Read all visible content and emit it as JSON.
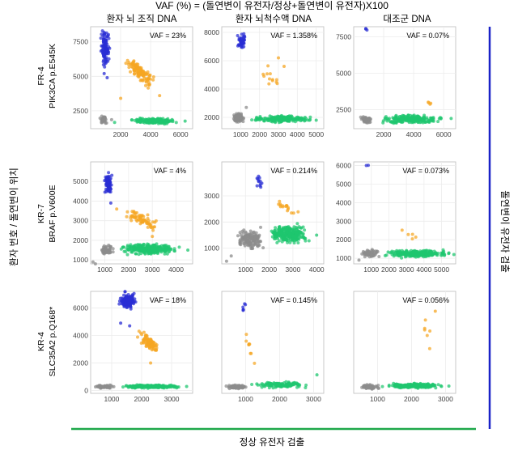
{
  "title": "VAF (%) = (돌연변이 유전자/정상+돌연변이 유전자)X100",
  "column_headers": [
    "환자 뇌 조직 DNA",
    "환자 뇌척수액 DNA",
    "대조군 DNA"
  ],
  "y_axis_label": "환자 번호 / 돌연변이 위치",
  "x_axis_label": "정상 유전자 검출",
  "right_axis_label": "돌연변이 유전자 검출",
  "colors": {
    "mutant": "#2a2ed4",
    "double": "#f5a623",
    "wildtype": "#1ec66f",
    "negative": "#8c8c8c",
    "grid": "#ececec",
    "blue_line": "#1a22c8",
    "green_line": "#1ea84a"
  },
  "rows": [
    {
      "patient": "FR-4",
      "mutation": "PIK3CA p.E545K"
    },
    {
      "patient": "KR-7",
      "mutation": "BRAF p.V600E"
    },
    {
      "patient": "KR-4",
      "mutation": "SLC35A2 p.Q168*"
    }
  ],
  "chart_data": [
    {
      "type": "scatter",
      "row": "FR-4",
      "column": "환자 뇌 조직 DNA",
      "annotation": "VAF = 23%",
      "xlim": [
        0,
        6800
      ],
      "ylim": [
        1200,
        8600
      ],
      "xticks": [
        2000,
        4000,
        6000
      ],
      "yticks": [
        2500,
        5000,
        7500
      ],
      "clusters": [
        {
          "name": "negative",
          "x": [
            500,
            1200
          ],
          "y": [
            1500,
            2200
          ],
          "n": 45,
          "tails": [
            [
              1400,
              1850
            ],
            [
              1000,
              1600
            ]
          ]
        },
        {
          "name": "mutant",
          "x": [
            600,
            1300
          ],
          "y": [
            5600,
            8600
          ],
          "n": 110,
          "tails": [
            [
              900,
              5200
            ],
            [
              1100,
              4900
            ]
          ]
        },
        {
          "name": "double",
          "x": [
            2200,
            4400
          ],
          "y": [
            3800,
            6800
          ],
          "n": 130,
          "tails": [
            [
              2000,
              3400
            ],
            [
              4600,
              3600
            ]
          ]
        },
        {
          "name": "wildtype",
          "x": [
            2400,
            6000
          ],
          "y": [
            1500,
            2000
          ],
          "n": 190,
          "tails": [
            [
              6300,
              1750
            ],
            [
              1600,
              1650
            ]
          ]
        }
      ]
    },
    {
      "type": "scatter",
      "row": "FR-4",
      "column": "환자 뇌척수액 DNA",
      "annotation": "VAF = 1.358%",
      "xlim": [
        0,
        5400
      ],
      "ylim": [
        1200,
        8400
      ],
      "xticks": [
        1000,
        2000,
        3000,
        4000,
        5000
      ],
      "yticks": [
        2000,
        4000,
        6000,
        8000
      ],
      "clusters": [
        {
          "name": "negative",
          "x": [
            500,
            1300
          ],
          "y": [
            1500,
            2400
          ],
          "n": 80,
          "tails": [
            [
              1300,
              2700
            ]
          ]
        },
        {
          "name": "mutant",
          "x": [
            800,
            1300
          ],
          "y": [
            6600,
            8100
          ],
          "n": 45,
          "tails": []
        },
        {
          "name": "double",
          "x": [
            1600,
            3600
          ],
          "y": [
            2600,
            6500
          ],
          "n": 12,
          "tails": [
            [
              3000,
              6200
            ],
            [
              3300,
              5600
            ]
          ]
        },
        {
          "name": "wildtype",
          "x": [
            1300,
            5000
          ],
          "y": [
            1600,
            2200
          ],
          "n": 210,
          "tails": [
            [
              5000,
              1800
            ]
          ]
        }
      ]
    },
    {
      "type": "scatter",
      "row": "FR-4",
      "column": "대조군 DNA",
      "annotation": "VAF = 0.07%",
      "xlim": [
        0,
        6800
      ],
      "ylim": [
        1200,
        8200
      ],
      "xticks": [
        2000,
        4000,
        6000
      ],
      "yticks": [
        2500,
        5000,
        7500
      ],
      "clusters": [
        {
          "name": "negative",
          "x": [
            400,
            1300
          ],
          "y": [
            1500,
            2100
          ],
          "n": 55,
          "tails": [
            [
              900,
              1900
            ]
          ]
        },
        {
          "name": "mutant",
          "x": [
            700,
            1000
          ],
          "y": [
            7600,
            8200
          ],
          "n": 3,
          "tails": []
        },
        {
          "name": "double",
          "x": [
            4900,
            5300
          ],
          "y": [
            2400,
            3500
          ],
          "n": 4,
          "tails": []
        },
        {
          "name": "wildtype",
          "x": [
            1400,
            6300
          ],
          "y": [
            1500,
            2200
          ],
          "n": 230,
          "tails": [
            [
              6500,
              1900
            ]
          ]
        }
      ]
    },
    {
      "type": "scatter",
      "row": "KR-7",
      "column": "환자 뇌 조직 DNA",
      "annotation": "VAF = 4%",
      "xlim": [
        400,
        4700
      ],
      "ylim": [
        800,
        6000
      ],
      "xticks": [
        1000,
        2000,
        3000,
        4000
      ],
      "yticks": [
        1000,
        2000,
        3000,
        4000,
        5000
      ],
      "clusters": [
        {
          "name": "negative",
          "x": [
            700,
            1400
          ],
          "y": [
            1200,
            1900
          ],
          "n": 55,
          "tails": [
            [
              600,
              800
            ],
            [
              500,
              900
            ]
          ]
        },
        {
          "name": "mutant",
          "x": [
            950,
            1350
          ],
          "y": [
            4100,
            5600
          ],
          "n": 85,
          "tails": [
            [
              1250,
              3900
            ]
          ]
        },
        {
          "name": "double",
          "x": [
            1700,
            3300
          ],
          "y": [
            2300,
            3900
          ],
          "n": 70,
          "tails": [
            [
              1500,
              3600
            ],
            [
              3000,
              2200
            ]
          ]
        },
        {
          "name": "wildtype",
          "x": [
            1400,
            4400
          ],
          "y": [
            1200,
            1900
          ],
          "n": 260,
          "tails": [
            [
              4500,
              1500
            ]
          ]
        }
      ]
    },
    {
      "type": "scatter",
      "row": "KR-7",
      "column": "환자 뇌척수액 DNA",
      "annotation": "VAF = 0.214%",
      "xlim": [
        0,
        4300
      ],
      "ylim": [
        400,
        4300
      ],
      "xticks": [
        1000,
        2000,
        3000,
        4000
      ],
      "yticks": [
        1000,
        2000,
        3000
      ],
      "clusters": [
        {
          "name": "negative",
          "x": [
            500,
            1900
          ],
          "y": [
            800,
            1900
          ],
          "n": 140,
          "tails": [
            [
              200,
              500
            ],
            [
              400,
              700
            ]
          ]
        },
        {
          "name": "mutant",
          "x": [
            1400,
            1800
          ],
          "y": [
            3200,
            3800
          ],
          "n": 12,
          "tails": []
        },
        {
          "name": "double",
          "x": [
            1900,
            3500
          ],
          "y": [
            2000,
            3100
          ],
          "n": 16,
          "tails": [
            [
              2800,
              2500
            ]
          ]
        },
        {
          "name": "wildtype",
          "x": [
            1800,
            3800
          ],
          "y": [
            1100,
            2000
          ],
          "n": 280,
          "tails": [
            [
              4000,
              1500
            ]
          ]
        }
      ]
    },
    {
      "type": "scatter",
      "row": "KR-7",
      "column": "대조군 DNA",
      "annotation": "VAF = 0.073%",
      "xlim": [
        0,
        5800
      ],
      "ylim": [
        700,
        6200
      ],
      "xticks": [
        1000,
        2000,
        3000,
        4000,
        5000
      ],
      "yticks": [
        1000,
        2000,
        3000,
        4000,
        5000,
        6000
      ],
      "clusters": [
        {
          "name": "negative",
          "x": [
            400,
            1500
          ],
          "y": [
            1000,
            1500
          ],
          "n": 70,
          "tails": [
            [
              300,
              900
            ]
          ]
        },
        {
          "name": "mutant",
          "x": [
            500,
            1000
          ],
          "y": [
            5900,
            6100
          ],
          "n": 2,
          "tails": []
        },
        {
          "name": "double",
          "x": [
            2400,
            3800
          ],
          "y": [
            1600,
            3400
          ],
          "n": 5,
          "tails": []
        },
        {
          "name": "wildtype",
          "x": [
            1400,
            5700
          ],
          "y": [
            1000,
            1500
          ],
          "n": 260,
          "tails": [
            [
              5700,
              1200
            ]
          ]
        }
      ]
    },
    {
      "type": "scatter",
      "row": "KR-4",
      "column": "환자 뇌 조직 DNA",
      "annotation": "VAF = 18%",
      "xlim": [
        300,
        3700
      ],
      "ylim": [
        -200,
        7200
      ],
      "xticks": [
        1000,
        2000,
        3000
      ],
      "yticks": [
        0,
        2000,
        4000,
        6000
      ],
      "clusters": [
        {
          "name": "negative",
          "x": [
            400,
            1200
          ],
          "y": [
            100,
            450
          ],
          "n": 50,
          "tails": []
        },
        {
          "name": "mutant",
          "x": [
            1200,
            1900
          ],
          "y": [
            5800,
            7200
          ],
          "n": 160,
          "tails": [
            [
              1300,
              4900
            ],
            [
              1600,
              4700
            ]
          ]
        },
        {
          "name": "double",
          "x": [
            1800,
            2700
          ],
          "y": [
            2400,
            4600
          ],
          "n": 90,
          "tails": [
            [
              2300,
              2000
            ]
          ]
        },
        {
          "name": "wildtype",
          "x": [
            1200,
            3500
          ],
          "y": [
            150,
            450
          ],
          "n": 200,
          "tails": [
            [
              3500,
              300
            ]
          ]
        }
      ]
    },
    {
      "type": "scatter",
      "row": "KR-4",
      "column": "환자 뇌척수액 DNA",
      "annotation": "VAF = 0.145%",
      "xlim": [
        300,
        3300
      ],
      "ylim": [
        -200,
        7500
      ],
      "xticks": [
        1000,
        2000,
        3000
      ],
      "yticks": [],
      "clusters": [
        {
          "name": "negative",
          "x": [
            400,
            1100
          ],
          "y": [
            100,
            500
          ],
          "n": 80,
          "tails": []
        },
        {
          "name": "mutant",
          "x": [
            850,
            1050
          ],
          "y": [
            5600,
            7000
          ],
          "n": 6,
          "tails": []
        },
        {
          "name": "double",
          "x": [
            900,
            1300
          ],
          "y": [
            1000,
            5600
          ],
          "n": 9,
          "tails": []
        },
        {
          "name": "wildtype",
          "x": [
            1000,
            3100
          ],
          "y": [
            150,
            700
          ],
          "n": 120,
          "tails": [
            [
              3100,
              1200
            ]
          ]
        }
      ]
    },
    {
      "type": "scatter",
      "row": "KR-4",
      "column": "대조군 DNA",
      "annotation": "VAF = 0.056%",
      "xlim": [
        300,
        3300
      ],
      "ylim": [
        -200,
        7500
      ],
      "xticks": [
        1000,
        2000,
        3000
      ],
      "yticks": [],
      "clusters": [
        {
          "name": "negative",
          "x": [
            400,
            1100
          ],
          "y": [
            100,
            500
          ],
          "n": 70,
          "tails": []
        },
        {
          "name": "double",
          "x": [
            2200,
            2800
          ],
          "y": [
            1200,
            7200
          ],
          "n": 6,
          "tails": [
            [
              2700,
              6000
            ]
          ]
        },
        {
          "name": "wildtype",
          "x": [
            1000,
            3100
          ],
          "y": [
            150,
            600
          ],
          "n": 220,
          "tails": [
            [
              3100,
              350
            ]
          ]
        }
      ]
    }
  ]
}
